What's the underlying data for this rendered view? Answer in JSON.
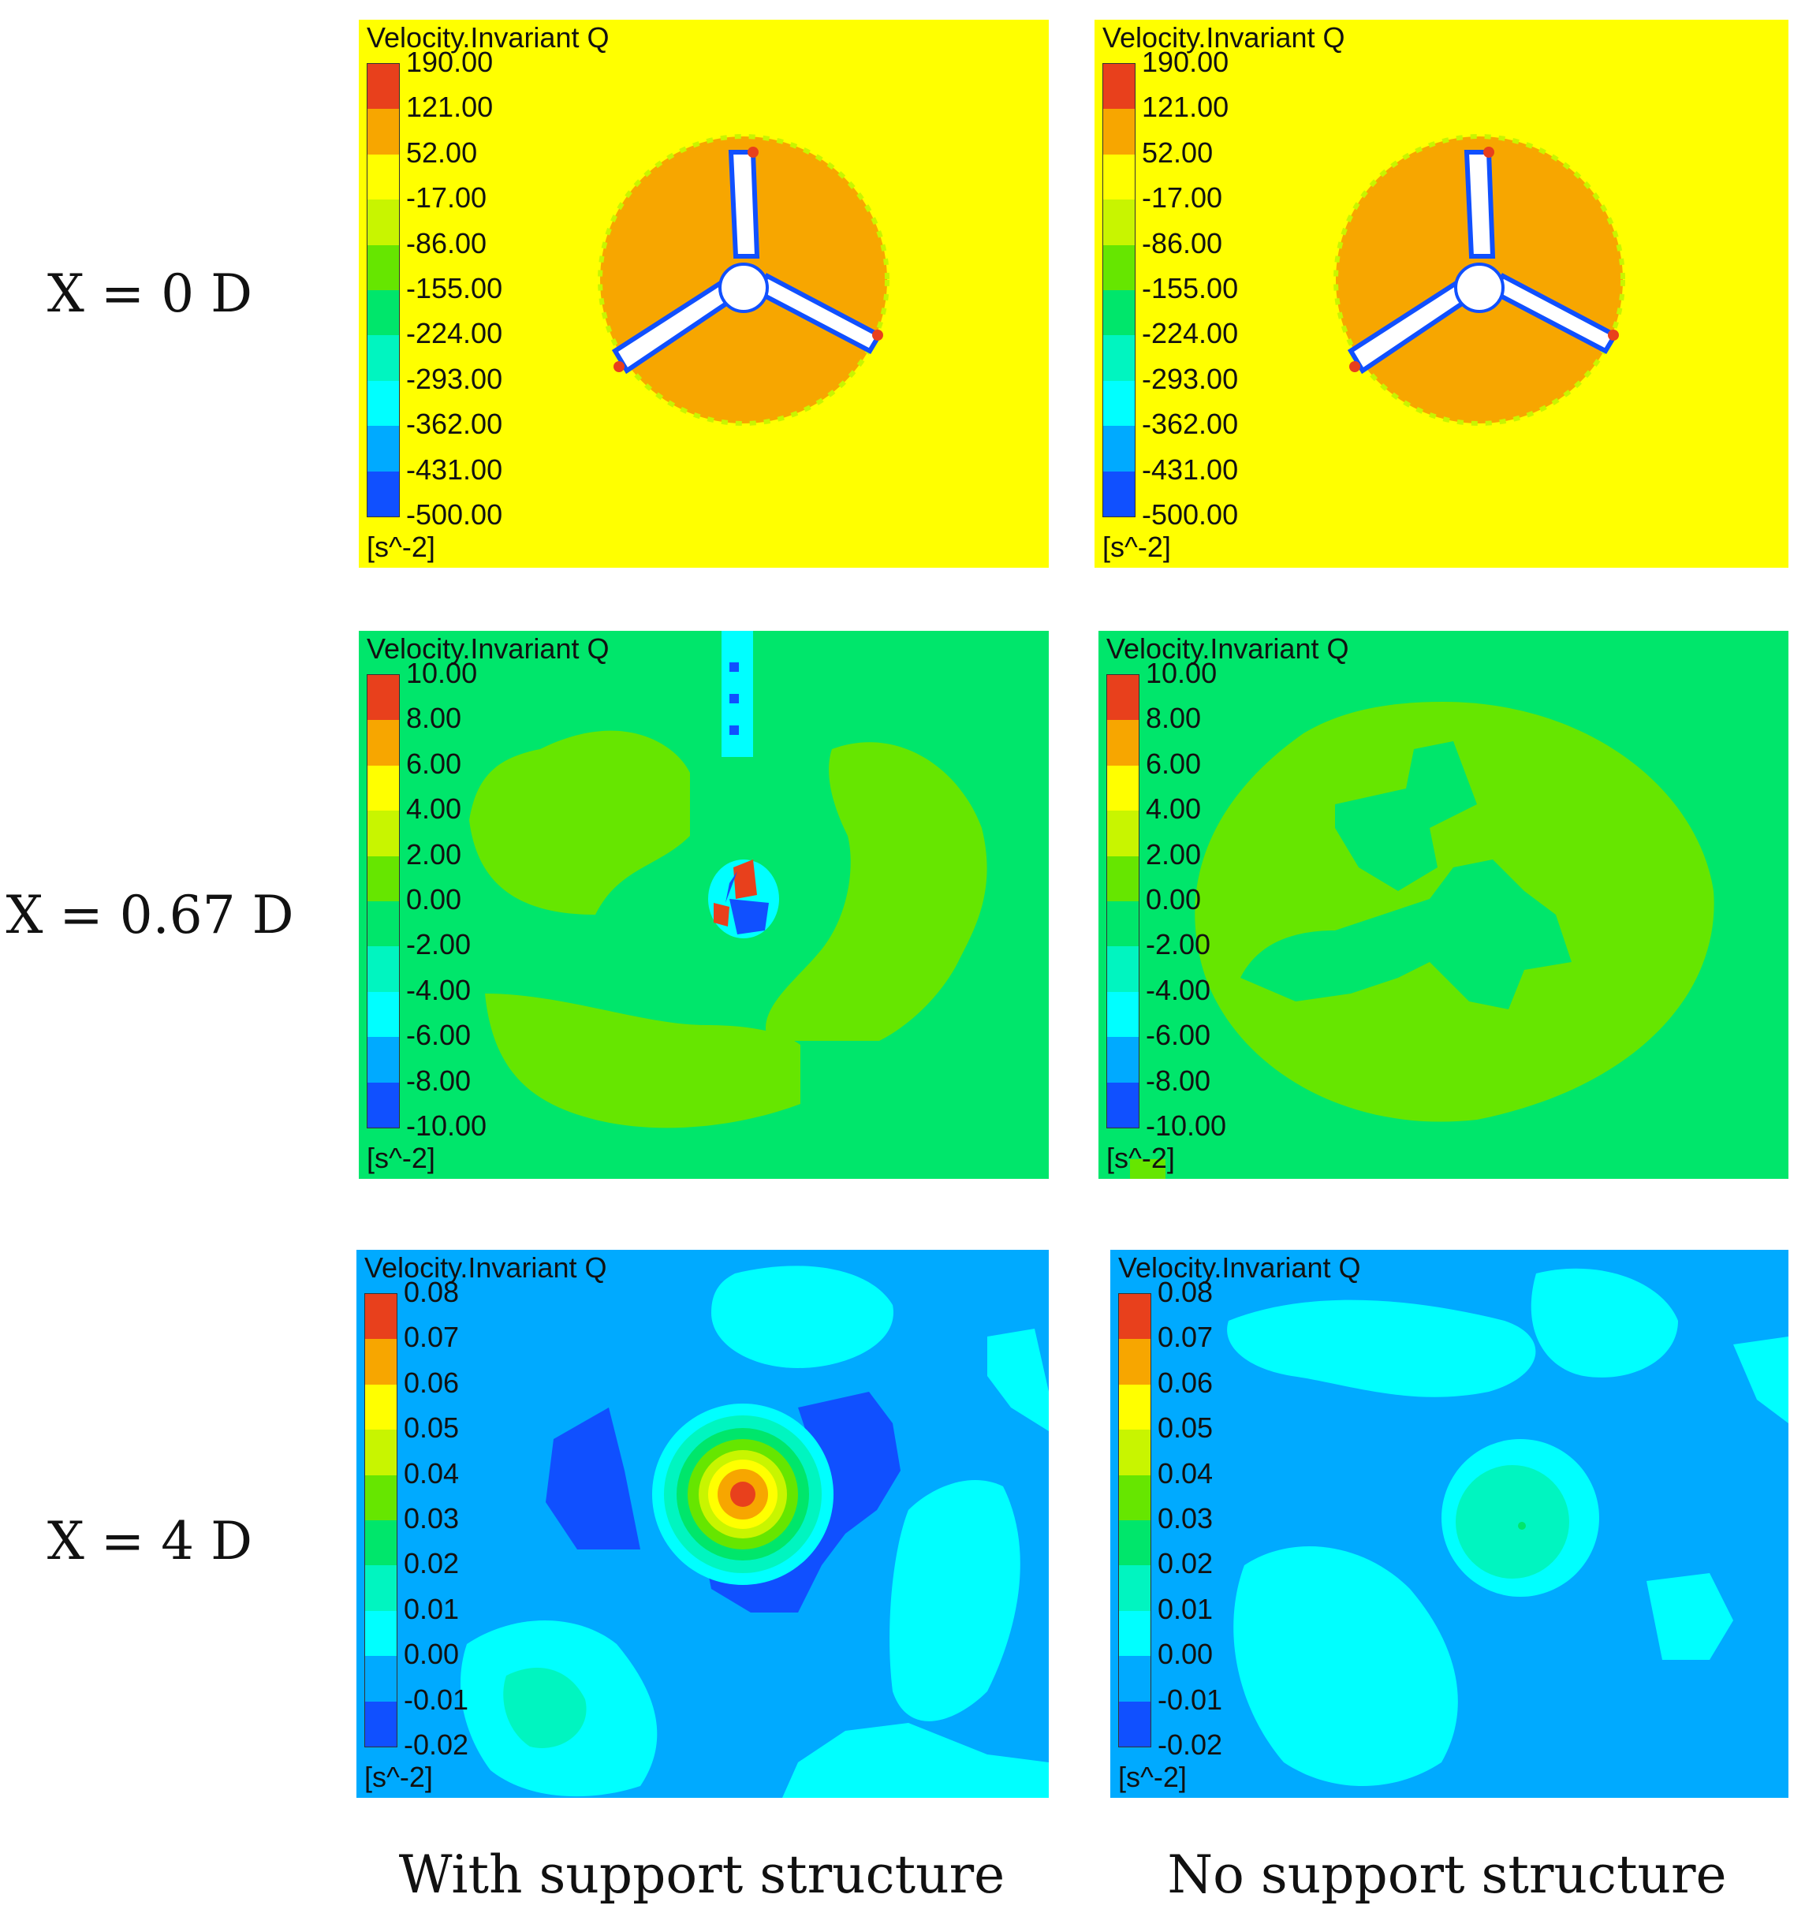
{
  "row_labels": [
    "X = 0 D",
    "X = 0.67 D",
    "X = 4 D"
  ],
  "column_labels": [
    "With support structure",
    "No support structure"
  ],
  "legend": {
    "title": "Velocity.Invariant Q",
    "unit": "[s^-2]",
    "colors": [
      "#e8401c",
      "#f7a600",
      "#ffff00",
      "#c8f500",
      "#66e600",
      "#00e66b",
      "#00f5c0",
      "#00ffff",
      "#00aaff",
      "#1050ff"
    ],
    "row0_ticks": [
      "190.00",
      "121.00",
      "52.00",
      "-17.00",
      "-86.00",
      "-155.00",
      "-224.00",
      "-293.00",
      "-362.00",
      "-431.00",
      "-500.00"
    ],
    "row1_ticks": [
      "10.00",
      "8.00",
      "6.00",
      "4.00",
      "2.00",
      "0.00",
      "-2.00",
      "-4.00",
      "-6.00",
      "-8.00",
      "-10.00"
    ],
    "row2_ticks": [
      "0.08",
      "0.07",
      "0.06",
      "0.05",
      "0.04",
      "0.03",
      "0.02",
      "0.01",
      "0.00",
      "-0.01",
      "-0.02"
    ]
  },
  "colors": {
    "row0_background": "#ffff00",
    "row0_rotor_disc": "#f7a600",
    "row1_background": "#00e66b",
    "row1_wake": "#66e600",
    "row2_background": "#00aaff",
    "row2_patch": "#00ffff"
  }
}
